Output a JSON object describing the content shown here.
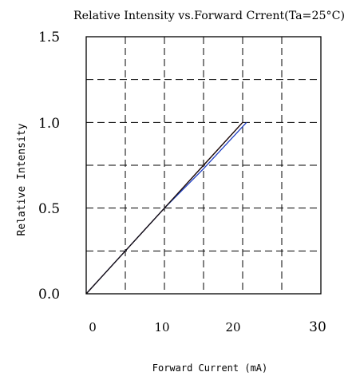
{
  "chart_data": {
    "type": "line",
    "title": "Relative Intensity vs.Forward Crrent(Ta=25°C)",
    "xlabel": "Forward Current (mA)",
    "ylabel": "Relative Intensity",
    "xlim": [
      0,
      30
    ],
    "ylim": [
      0,
      1.5
    ],
    "x_ticks": [
      "0",
      "10",
      "20",
      "30"
    ],
    "y_ticks": [
      "0.0",
      "0.5",
      "1.0",
      "1.5"
    ],
    "grid": "dashed",
    "series": [
      {
        "color": "#d62020",
        "x": [
          0,
          5,
          10,
          15,
          20
        ],
        "y": [
          0,
          0.25,
          0.5,
          0.75,
          1.0
        ]
      },
      {
        "color": "#1f3fc4",
        "x": [
          0,
          5,
          10,
          15,
          20.5
        ],
        "y": [
          0,
          0.25,
          0.5,
          0.73,
          1.0
        ]
      },
      {
        "color": "#111111",
        "x": [
          0,
          5,
          10,
          15,
          20
        ],
        "y": [
          0,
          0.25,
          0.5,
          0.75,
          1.0
        ]
      }
    ]
  }
}
